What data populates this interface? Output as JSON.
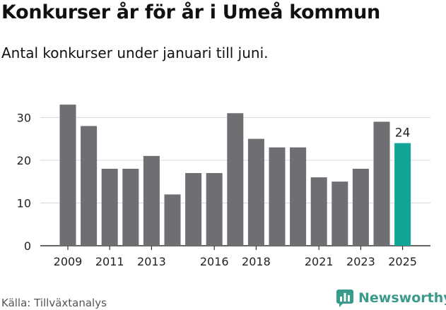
{
  "header": {
    "title": "Konkurser år för år i Umeå kommun",
    "subtitle": "Antal konkurser under januari till juni."
  },
  "footer": {
    "source": "Källa: Tillväxtanalys",
    "brand": "Newsworthy",
    "brand_icon": "bar-chart-logo-icon"
  },
  "colors": {
    "bar": "#6f6e73",
    "highlight": "#12a597",
    "grid": "#d9d9d9",
    "axis": "#333333",
    "text": "#222222",
    "brand": "#3a9a8c"
  },
  "chart_data": {
    "type": "bar",
    "title": "Konkurser år för år i Umeå kommun",
    "subtitle": "Antal konkurser under januari till juni.",
    "xlabel": "",
    "ylabel": "",
    "categories": [
      "2009",
      "2010",
      "2011",
      "2012",
      "2013",
      "2014",
      "2015",
      "2016",
      "2017",
      "2018",
      "2019",
      "2020",
      "2021",
      "2022",
      "2023",
      "2024",
      "2025"
    ],
    "values": [
      33,
      28,
      18,
      18,
      21,
      12,
      17,
      17,
      31,
      25,
      23,
      23,
      16,
      15,
      18,
      29,
      24
    ],
    "x_tick_labels": [
      "2009",
      "2011",
      "2013",
      "2016",
      "2018",
      "2021",
      "2023",
      "2025"
    ],
    "y_ticks": [
      0,
      10,
      20,
      30
    ],
    "ylim": [
      0,
      36
    ],
    "highlight_category": "2025",
    "data_labels": [
      {
        "category": "2025",
        "text": "24"
      }
    ],
    "grid": true,
    "legend": "none"
  }
}
